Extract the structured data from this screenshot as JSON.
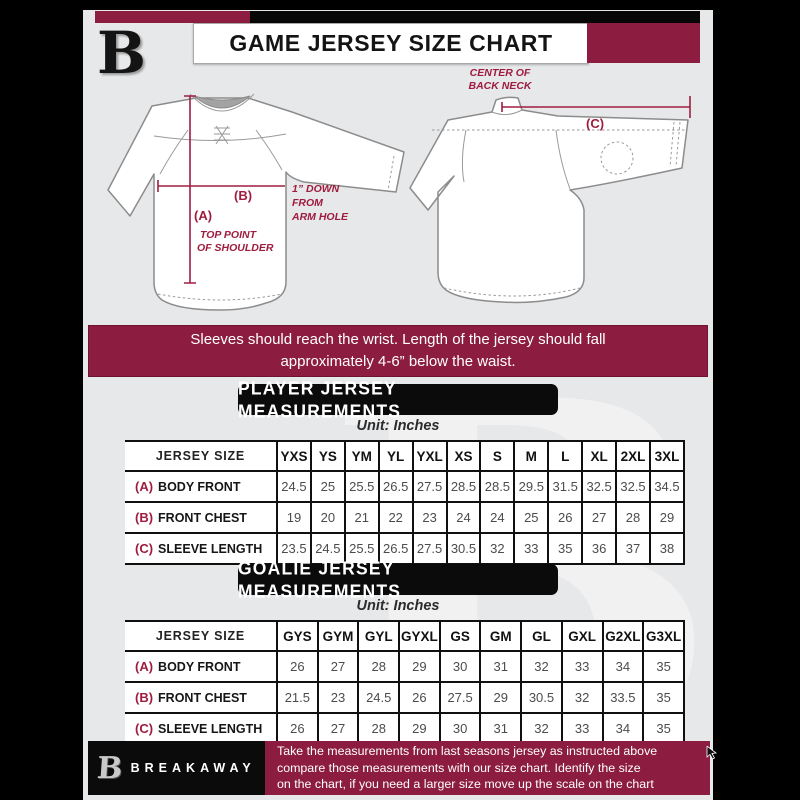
{
  "colors": {
    "maroon": "#8C1D40",
    "accent": "#9E1C3F",
    "black": "#0b0b0b",
    "bg": "#e7e8ea"
  },
  "header": {
    "title": "GAME JERSEY SIZE CHART",
    "logo_letter": "B"
  },
  "diagram": {
    "front": {
      "a_key": "(A)",
      "note_a_1": "TOP POINT",
      "note_a_2": "OF SHOULDER",
      "b_key": "(B)",
      "note_b_1": "1” DOWN",
      "note_b_2": "FROM",
      "note_b_3": "ARM HOLE"
    },
    "back": {
      "c_key": "(C)",
      "note_c_1": "CENTER OF",
      "note_c_2": "BACK NECK"
    }
  },
  "notice": "Sleeves should reach the wrist. Length of the jersey should fall approximately 4-6” below the waist.",
  "player_table": {
    "heading": "PLAYER JERSEY MEASUREMENTS",
    "unit": "Unit: Inches",
    "header": [
      "JERSEY SIZE",
      "YXS",
      "YS",
      "YM",
      "YL",
      "YXL",
      "XS",
      "S",
      "M",
      "L",
      "XL",
      "2XL",
      "3XL"
    ],
    "rows": [
      {
        "key": "(A)",
        "label": "BODY FRONT",
        "values": [
          "24.5",
          "25",
          "25.5",
          "26.5",
          "27.5",
          "28.5",
          "28.5",
          "29.5",
          "31.5",
          "32.5",
          "32.5",
          "34.5"
        ]
      },
      {
        "key": "(B)",
        "label": "FRONT CHEST",
        "values": [
          "19",
          "20",
          "21",
          "22",
          "23",
          "24",
          "24",
          "25",
          "26",
          "27",
          "28",
          "29"
        ]
      },
      {
        "key": "(C)",
        "label": "SLEEVE LENGTH",
        "values": [
          "23.5",
          "24.5",
          "25.5",
          "26.5",
          "27.5",
          "30.5",
          "32",
          "33",
          "35",
          "36",
          "37",
          "38"
        ]
      }
    ]
  },
  "goalie_table": {
    "heading": "GOALIE JERSEY MEASUREMENTS",
    "unit": "Unit: Inches",
    "header": [
      "JERSEY SIZE",
      "GYS",
      "GYM",
      "GYL",
      "GYXL",
      "GS",
      "GM",
      "GL",
      "GXL",
      "G2XL",
      "G3XL"
    ],
    "rows": [
      {
        "key": "(A)",
        "label": "BODY FRONT",
        "values": [
          "26",
          "27",
          "28",
          "29",
          "30",
          "31",
          "32",
          "33",
          "34",
          "35"
        ]
      },
      {
        "key": "(B)",
        "label": "FRONT CHEST",
        "values": [
          "21.5",
          "23",
          "24.5",
          "26",
          "27.5",
          "29",
          "30.5",
          "32",
          "33.5",
          "35"
        ]
      },
      {
        "key": "(C)",
        "label": "SLEEVE LENGTH",
        "values": [
          "26",
          "27",
          "28",
          "29",
          "30",
          "31",
          "32",
          "33",
          "34",
          "35"
        ]
      }
    ]
  },
  "footer": {
    "brand": "BREAKAWAY",
    "logo_letter": "B",
    "line1": "Take the measurements from last seasons jersey as instructed above",
    "line2": "compare those measurements  with our size chart. Identify the size",
    "line3": "on the chart, if you need a larger size move up the scale on the chart"
  }
}
